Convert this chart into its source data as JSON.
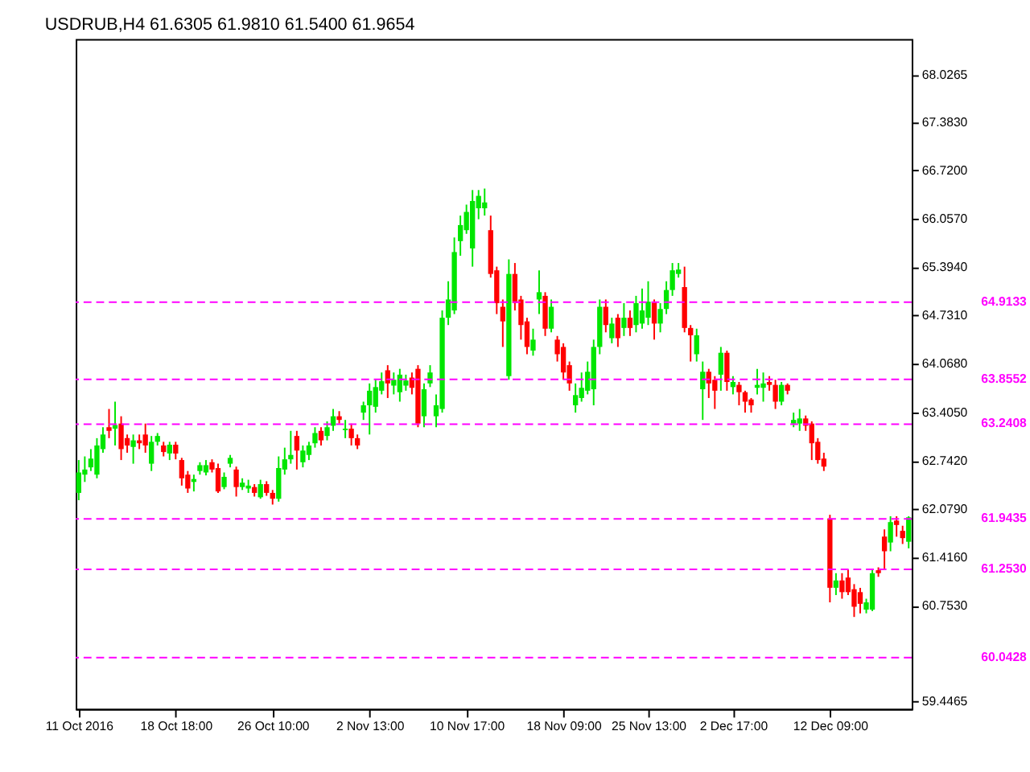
{
  "chart_data": {
    "type": "candlestick",
    "title": "USDRUB,H4  61.6305 61.9810 61.5400 61.9654",
    "categories": [
      "11 Oct 2016",
      null,
      null,
      null,
      null,
      null,
      null,
      null,
      null,
      null,
      null,
      null,
      null,
      null,
      null,
      null,
      "18 Oct 18:00",
      null,
      null,
      null,
      null,
      null,
      null,
      null,
      null,
      null,
      null,
      null,
      null,
      null,
      null,
      null,
      "26 Oct 10:00",
      null,
      null,
      null,
      null,
      null,
      null,
      null,
      null,
      null,
      null,
      null,
      null,
      null,
      null,
      null,
      "2 Nov 13:00",
      null,
      null,
      null,
      null,
      null,
      null,
      null,
      null,
      null,
      null,
      null,
      null,
      null,
      null,
      null,
      "10 Nov 17:00",
      null,
      null,
      null,
      null,
      null,
      null,
      null,
      null,
      null,
      null,
      null,
      null,
      null,
      null,
      null,
      "18 Nov 09:00",
      null,
      null,
      null,
      null,
      null,
      null,
      null,
      null,
      null,
      null,
      null,
      null,
      null,
      "25 Nov 13:00",
      null,
      null,
      null,
      null,
      null,
      null,
      null,
      null,
      null,
      null,
      null,
      null,
      null,
      "2 Dec 17:00",
      null,
      null,
      null,
      null,
      null,
      null,
      null,
      null,
      null,
      null,
      null,
      null,
      null,
      null,
      null,
      "12 Dec 09:00",
      null,
      null,
      null,
      null,
      null,
      null,
      null,
      null,
      null,
      null,
      null,
      null,
      null
    ],
    "ohlc": [
      [
        62.3,
        62.75,
        62.2,
        62.58
      ],
      [
        62.55,
        62.8,
        62.45,
        62.62
      ],
      [
        62.65,
        62.9,
        62.6,
        62.77
      ],
      [
        62.55,
        63.05,
        62.5,
        62.95
      ],
      [
        62.9,
        63.2,
        62.85,
        63.1
      ],
      [
        63.2,
        63.45,
        63.05,
        63.15
      ],
      [
        63.18,
        63.55,
        62.95,
        63.23
      ],
      [
        63.25,
        63.35,
        62.75,
        62.9
      ],
      [
        63.05,
        63.1,
        62.85,
        62.95
      ],
      [
        62.93,
        63.1,
        62.7,
        63.02
      ],
      [
        63.02,
        63.1,
        62.9,
        62.98
      ],
      [
        63.1,
        63.25,
        62.85,
        62.95
      ],
      [
        62.7,
        63.08,
        62.6,
        63.0
      ],
      [
        63.0,
        63.12,
        62.95,
        63.08
      ],
      [
        62.95,
        63.0,
        62.8,
        62.86
      ],
      [
        62.84,
        63.0,
        62.75,
        62.96
      ],
      [
        62.96,
        63.0,
        62.76,
        62.84
      ],
      [
        62.75,
        62.78,
        62.4,
        62.5
      ],
      [
        62.55,
        62.6,
        62.3,
        62.36
      ],
      [
        62.45,
        62.55,
        62.32,
        62.49
      ],
      [
        62.6,
        62.72,
        62.55,
        62.68
      ],
      [
        62.58,
        62.75,
        62.54,
        62.68
      ],
      [
        62.72,
        62.76,
        62.58,
        62.62
      ],
      [
        62.64,
        62.7,
        62.3,
        62.32
      ],
      [
        62.38,
        62.58,
        62.35,
        62.52
      ],
      [
        62.7,
        62.82,
        62.65,
        62.78
      ],
      [
        62.62,
        62.66,
        62.25,
        62.38
      ],
      [
        62.38,
        62.5,
        62.34,
        62.44
      ],
      [
        62.36,
        62.48,
        62.3,
        62.4
      ],
      [
        62.38,
        62.42,
        62.25,
        62.3
      ],
      [
        62.24,
        62.48,
        62.22,
        62.42
      ],
      [
        62.42,
        62.46,
        62.26,
        62.3
      ],
      [
        62.3,
        62.34,
        62.14,
        62.22
      ],
      [
        62.22,
        62.8,
        62.18,
        62.64
      ],
      [
        62.62,
        62.92,
        62.55,
        62.76
      ],
      [
        62.76,
        63.15,
        62.7,
        62.82
      ],
      [
        63.08,
        63.15,
        62.62,
        62.88
      ],
      [
        62.72,
        62.95,
        62.65,
        62.88
      ],
      [
        62.82,
        63.0,
        62.75,
        62.95
      ],
      [
        62.98,
        63.2,
        62.92,
        63.12
      ],
      [
        63.15,
        63.2,
        62.95,
        63.02
      ],
      [
        63.08,
        63.28,
        63.02,
        63.2
      ],
      [
        63.22,
        63.45,
        63.15,
        63.35
      ],
      [
        63.35,
        63.42,
        63.25,
        63.3
      ],
      [
        63.16,
        63.3,
        63.05,
        63.18
      ],
      [
        63.18,
        63.25,
        62.95,
        63.05
      ],
      [
        63.05,
        63.1,
        62.9,
        62.95
      ],
      [
        63.4,
        63.55,
        63.3,
        63.5
      ],
      [
        63.5,
        63.8,
        63.1,
        63.7
      ],
      [
        63.48,
        63.85,
        63.4,
        63.75
      ],
      [
        63.7,
        63.95,
        63.65,
        63.83
      ],
      [
        63.98,
        64.05,
        63.6,
        63.8
      ],
      [
        63.77,
        63.95,
        63.65,
        63.85
      ],
      [
        63.68,
        64.0,
        63.55,
        63.92
      ],
      [
        63.77,
        63.92,
        63.7,
        63.84
      ],
      [
        63.88,
        63.95,
        63.65,
        63.74
      ],
      [
        64.0,
        64.05,
        63.2,
        63.25
      ],
      [
        63.35,
        63.8,
        63.2,
        63.72
      ],
      [
        63.8,
        64.05,
        63.75,
        63.95
      ],
      [
        63.35,
        63.65,
        63.2,
        63.5
      ],
      [
        63.45,
        64.8,
        63.4,
        64.7
      ],
      [
        64.7,
        65.2,
        64.6,
        64.95
      ],
      [
        64.8,
        65.8,
        64.75,
        65.6
      ],
      [
        65.75,
        66.1,
        65.55,
        65.97
      ],
      [
        65.9,
        66.25,
        65.85,
        66.15
      ],
      [
        65.65,
        66.45,
        65.4,
        66.3
      ],
      [
        66.2,
        66.45,
        66.05,
        66.37
      ],
      [
        66.2,
        66.47,
        66.1,
        66.28
      ],
      [
        65.9,
        66.1,
        65.25,
        65.3
      ],
      [
        65.35,
        65.4,
        64.75,
        64.9
      ],
      [
        64.85,
        64.95,
        64.3,
        64.65
      ],
      [
        63.9,
        65.5,
        63.85,
        65.3
      ],
      [
        65.3,
        65.45,
        64.8,
        64.9
      ],
      [
        64.95,
        65.0,
        64.4,
        64.6
      ],
      [
        64.65,
        64.7,
        64.2,
        64.3
      ],
      [
        64.25,
        64.55,
        64.18,
        64.4
      ],
      [
        64.95,
        65.35,
        64.75,
        65.05
      ],
      [
        65.0,
        65.05,
        64.45,
        64.55
      ],
      [
        64.55,
        64.95,
        64.5,
        64.85
      ],
      [
        64.4,
        64.45,
        64.1,
        64.2
      ],
      [
        64.3,
        64.35,
        63.85,
        63.95
      ],
      [
        64.05,
        64.1,
        63.7,
        63.8
      ],
      [
        63.5,
        63.8,
        63.4,
        63.64
      ],
      [
        63.6,
        63.95,
        63.55,
        63.74
      ],
      [
        63.7,
        64.1,
        63.65,
        63.96
      ],
      [
        63.72,
        64.4,
        63.5,
        64.3
      ],
      [
        64.3,
        64.95,
        64.2,
        64.85
      ],
      [
        64.85,
        64.95,
        64.5,
        64.6
      ],
      [
        64.42,
        64.7,
        64.35,
        64.62
      ],
      [
        64.7,
        64.75,
        64.3,
        64.42
      ],
      [
        64.56,
        64.9,
        64.45,
        64.7
      ],
      [
        64.7,
        64.8,
        64.45,
        64.56
      ],
      [
        64.6,
        65.0,
        64.5,
        64.9
      ],
      [
        64.62,
        65.1,
        64.55,
        64.8
      ],
      [
        64.7,
        65.2,
        64.6,
        64.92
      ],
      [
        64.92,
        64.95,
        64.4,
        64.62
      ],
      [
        64.62,
        64.9,
        64.5,
        64.82
      ],
      [
        64.82,
        65.2,
        64.75,
        65.08
      ],
      [
        65.08,
        65.45,
        65.0,
        65.35
      ],
      [
        65.3,
        65.45,
        65.25,
        65.36
      ],
      [
        65.12,
        65.4,
        64.5,
        64.56
      ],
      [
        64.56,
        64.6,
        64.1,
        64.46
      ],
      [
        64.2,
        64.55,
        64.1,
        64.46
      ],
      [
        63.72,
        64.1,
        63.3,
        63.96
      ],
      [
        63.96,
        64.0,
        63.6,
        63.8
      ],
      [
        63.85,
        63.9,
        63.45,
        63.7
      ],
      [
        63.92,
        64.3,
        63.7,
        64.22
      ],
      [
        64.22,
        64.25,
        63.7,
        63.82
      ],
      [
        63.75,
        63.9,
        63.65,
        63.82
      ],
      [
        63.78,
        63.82,
        63.5,
        63.68
      ],
      [
        63.68,
        63.7,
        63.4,
        63.55
      ],
      [
        63.58,
        63.6,
        63.4,
        63.5
      ],
      [
        63.74,
        64.0,
        63.65,
        63.78
      ],
      [
        63.74,
        63.95,
        63.55,
        63.8
      ],
      [
        63.82,
        63.9,
        63.7,
        63.78
      ],
      [
        63.78,
        63.85,
        63.45,
        63.55
      ],
      [
        63.55,
        63.82,
        63.5,
        63.78
      ],
      [
        63.78,
        63.8,
        63.65,
        63.7
      ],
      [
        63.25,
        63.4,
        63.2,
        63.3
      ],
      [
        63.25,
        63.45,
        63.15,
        63.32
      ],
      [
        63.32,
        63.36,
        63.15,
        63.22
      ],
      [
        63.25,
        63.28,
        62.75,
        62.98
      ],
      [
        63.0,
        63.05,
        62.7,
        62.75
      ],
      [
        62.77,
        62.85,
        62.6,
        62.66
      ],
      [
        61.95,
        62.0,
        60.8,
        61.0
      ],
      [
        61.0,
        61.2,
        60.9,
        61.1
      ],
      [
        61.1,
        61.2,
        60.85,
        60.94
      ],
      [
        61.14,
        61.25,
        60.9,
        60.94
      ],
      [
        60.98,
        61.05,
        60.6,
        60.74
      ],
      [
        60.94,
        61.0,
        60.65,
        60.78
      ],
      [
        60.7,
        60.85,
        60.65,
        60.8
      ],
      [
        60.7,
        61.25,
        60.68,
        61.2
      ],
      [
        61.24,
        61.28,
        61.15,
        61.2
      ],
      [
        61.7,
        61.8,
        61.25,
        61.5
      ],
      [
        61.62,
        61.98,
        61.5,
        61.9
      ],
      [
        61.92,
        61.98,
        61.7,
        61.86
      ],
      [
        61.78,
        61.85,
        61.6,
        61.68
      ],
      [
        61.6305,
        61.981,
        61.54,
        61.9654
      ]
    ],
    "ylim": [
      59.34,
      68.52
    ],
    "yticks": [
      {
        "value": 68.0265,
        "label": "68.0265"
      },
      {
        "value": 67.383,
        "label": "67.3830"
      },
      {
        "value": 66.72,
        "label": "66.7200"
      },
      {
        "value": 66.057,
        "label": "66.0570"
      },
      {
        "value": 65.394,
        "label": "65.3940"
      },
      {
        "value": 64.731,
        "label": "64.7310"
      },
      {
        "value": 64.068,
        "label": "64.0680"
      },
      {
        "value": 63.405,
        "label": "63.4050"
      },
      {
        "value": 62.742,
        "label": "62.7420"
      },
      {
        "value": 62.079,
        "label": "62.0790"
      },
      {
        "value": 61.416,
        "label": "61.4160"
      },
      {
        "value": 60.753,
        "label": "60.7530"
      },
      {
        "value": 59.4465,
        "label": "59.4465"
      }
    ],
    "ref_lines": [
      {
        "axis": "y",
        "value": 64.9133,
        "label": "64.9133",
        "color": "#ff00ff",
        "line_style": "dashed"
      },
      {
        "axis": "y",
        "value": 63.8552,
        "label": "63.8552",
        "color": "#ff00ff",
        "line_style": "dashed"
      },
      {
        "axis": "y",
        "value": 63.2408,
        "label": "63.2408",
        "color": "#ff00ff",
        "line_style": "dashed"
      },
      {
        "axis": "y",
        "value": 61.9435,
        "label": "61.9435",
        "color": "#ff00ff",
        "line_style": "dashed"
      },
      {
        "axis": "y",
        "value": 61.253,
        "label": "61.2530",
        "color": "#ff00ff",
        "line_style": "dashed"
      },
      {
        "axis": "y",
        "value": 60.0428,
        "label": "60.0428",
        "color": "#ff00ff",
        "line_style": "dashed"
      }
    ],
    "grid": false
  }
}
